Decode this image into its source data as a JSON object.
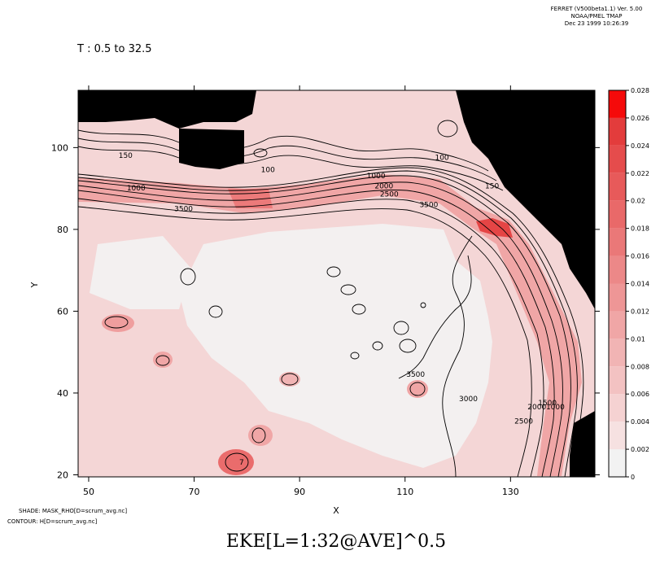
{
  "header": {
    "lines": [
      "FERRET (V500beta1.1) Ver. 5.00",
      "NOAA/PMEL TMAP",
      "Dec 23 1999 10:26:39"
    ]
  },
  "time_range": "T : 0.5 to 32.5",
  "footer": {
    "shade_note": "SHADE: MASK_RHO[D=scrum_avg.nc]",
    "contour_note": "CONTOUR: H[D=scrum_avg.nc]",
    "title": "EKE[L=1:32@AVE]^0.5"
  },
  "chart_data": {
    "type": "heatmap",
    "xlabel": "X",
    "ylabel": "Y",
    "xlim": [
      48,
      146
    ],
    "ylim": [
      19.5,
      114
    ],
    "x_ticks": [
      50,
      70,
      90,
      110,
      130
    ],
    "y_ticks": [
      20,
      40,
      60,
      80,
      100
    ],
    "colorbar": {
      "levels": [
        0,
        0.002,
        0.004,
        0.006,
        0.008,
        0.01,
        0.012,
        0.014,
        0.016,
        0.018,
        0.02,
        0.022,
        0.024,
        0.026,
        0.028
      ],
      "labels": [
        "0",
        "0.002",
        "0.004",
        "0.006",
        "0.008",
        "0.01",
        "0.012",
        "0.014",
        "0.016",
        "0.018",
        "0.02",
        "0.022",
        "0.024",
        "0.026",
        "0.028"
      ],
      "colors": [
        "#f2f2f2",
        "#f6e1e1",
        "#f5d2d2",
        "#f3c2c2",
        "#f1b4b4",
        "#f0a6a6",
        "#ee9696",
        "#ec8888",
        "#ea7878",
        "#e96969",
        "#e75a5a",
        "#e54c4c",
        "#e33c3c",
        "#f50a0a"
      ]
    },
    "contour_labels": [
      {
        "text": "150",
        "x": 57,
        "y": 97.5
      },
      {
        "text": "100",
        "x": 84,
        "y": 94
      },
      {
        "text": "100",
        "x": 117,
        "y": 97
      },
      {
        "text": "150",
        "x": 126.5,
        "y": 90
      },
      {
        "text": "1000",
        "x": 59,
        "y": 89.5
      },
      {
        "text": "1000",
        "x": 104.5,
        "y": 92.5
      },
      {
        "text": "2000",
        "x": 106,
        "y": 90
      },
      {
        "text": "2500",
        "x": 107,
        "y": 88
      },
      {
        "text": "3500",
        "x": 68,
        "y": 84.5
      },
      {
        "text": "3500",
        "x": 114.5,
        "y": 85.5
      },
      {
        "text": "3500",
        "x": 112,
        "y": 44
      },
      {
        "text": "3000",
        "x": 122,
        "y": 38
      },
      {
        "text": "2500",
        "x": 132.5,
        "y": 32.5
      },
      {
        "text": "2000",
        "x": 135,
        "y": 36
      },
      {
        "text": "1500",
        "x": 137,
        "y": 37
      },
      {
        "text": "1000",
        "x": 138.5,
        "y": 36
      },
      {
        "text": "7",
        "x": 79,
        "y": 22.5
      }
    ]
  }
}
